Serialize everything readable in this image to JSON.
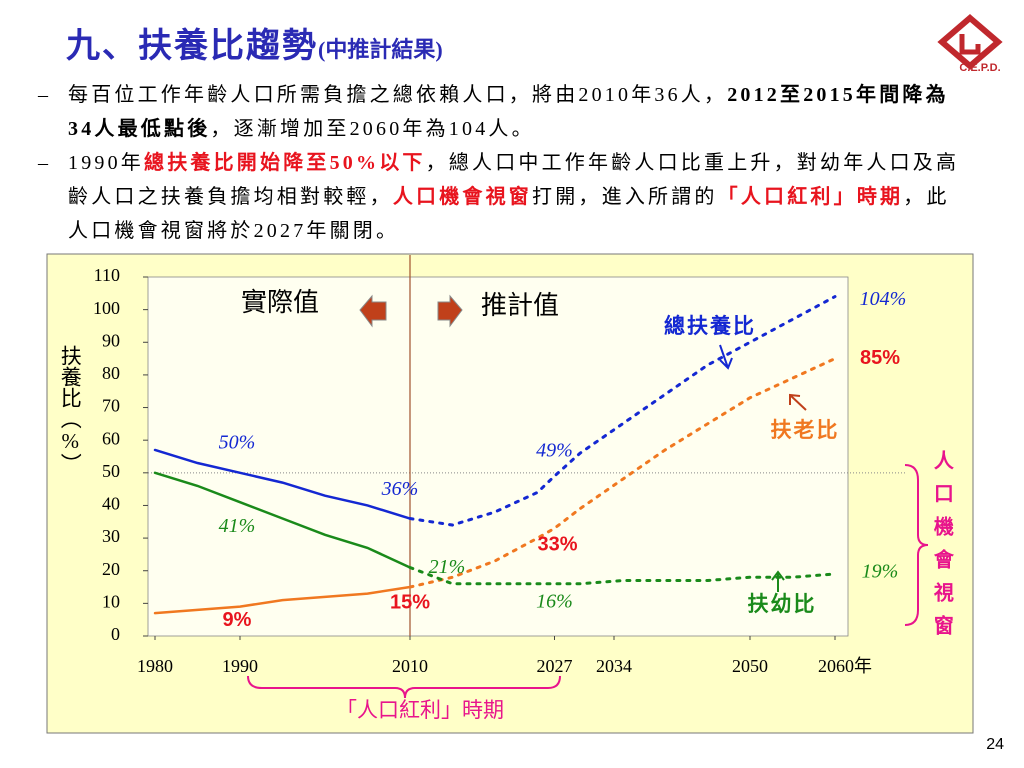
{
  "slide": {
    "title": "九、扶養比趨勢",
    "title_note": "(中推計結果)",
    "logo": "C.E.P.D.",
    "page_number": "24",
    "bullets": [
      [
        {
          "text": "每百位工作年齡人口所需負擔之總依賴人口，將由2010年36人，",
          "style": "normal"
        },
        {
          "text": "2012至2015年間降為34人最低點後",
          "style": "bold"
        },
        {
          "text": "，逐漸增加至2060年為104人。",
          "style": "normal"
        }
      ],
      [
        {
          "text": "1990年",
          "style": "normal"
        },
        {
          "text": "總扶養比開始降至50%以下",
          "style": "red"
        },
        {
          "text": "，總人口中工作年齡人口比重上升，對幼年人口及高齡人口之扶養負擔均相對較輕，",
          "style": "normal"
        },
        {
          "text": "人口機會視窗",
          "style": "red"
        },
        {
          "text": "打開，進入所謂的",
          "style": "normal"
        },
        {
          "text": "「人口紅利」時期",
          "style": "red"
        },
        {
          "text": "，此人口機會視窗將於2027年關閉。",
          "style": "normal"
        }
      ]
    ]
  },
  "chart_data": {
    "type": "line",
    "y_label": "扶養比（%）",
    "actual_label": "實際值",
    "projected_label": "推計值",
    "projection_start": 2010,
    "threshold": 50,
    "window_label": "人口機會視窗",
    "dividend_label": "「人口紅利」時期",
    "x": [
      1980,
      1985,
      1990,
      1995,
      2000,
      2005,
      2010,
      2015,
      2020,
      2025,
      2027,
      2030,
      2035,
      2040,
      2045,
      2050,
      2055,
      2060
    ],
    "xlim": [
      1980,
      2062
    ],
    "xticks": [
      1980,
      1990,
      2010,
      2027,
      2034,
      2050,
      {
        "value": 2060,
        "label": "2060年"
      }
    ],
    "ylim": [
      0,
      110
    ],
    "yticks": [
      0,
      10,
      20,
      30,
      40,
      50,
      60,
      70,
      80,
      90,
      100,
      110
    ],
    "series": [
      {
        "name": "總扶養比",
        "color": "#1428d2",
        "values": [
          57,
          53,
          50,
          47,
          43,
          40,
          36,
          34,
          38,
          44,
          49,
          56,
          65,
          74,
          83,
          90,
          97,
          104
        ],
        "value_labels": [
          null,
          null,
          "50%",
          null,
          null,
          null,
          "36%",
          null,
          null,
          null,
          "49%",
          null,
          null,
          null,
          null,
          null,
          null,
          "104%"
        ]
      },
      {
        "name": "扶老比",
        "color": "#f07820",
        "values": [
          7,
          8,
          9,
          11,
          12,
          13,
          15,
          18,
          23,
          30,
          33,
          39,
          48,
          57,
          65,
          73,
          79,
          85
        ],
        "value_labels": [
          null,
          null,
          "9%",
          null,
          null,
          null,
          "15%",
          null,
          null,
          null,
          "33%",
          null,
          null,
          null,
          null,
          null,
          null,
          "85%"
        ]
      },
      {
        "name": "扶幼比",
        "color": "#1a8a1a",
        "values": [
          50,
          46,
          41,
          36,
          31,
          27,
          21,
          16,
          16,
          16,
          16,
          16,
          17,
          17,
          17,
          18,
          18,
          19
        ],
        "value_labels": [
          null,
          null,
          "41%",
          null,
          null,
          null,
          "21%",
          null,
          null,
          null,
          "16%",
          null,
          null,
          null,
          null,
          null,
          null,
          "19%"
        ]
      }
    ]
  }
}
